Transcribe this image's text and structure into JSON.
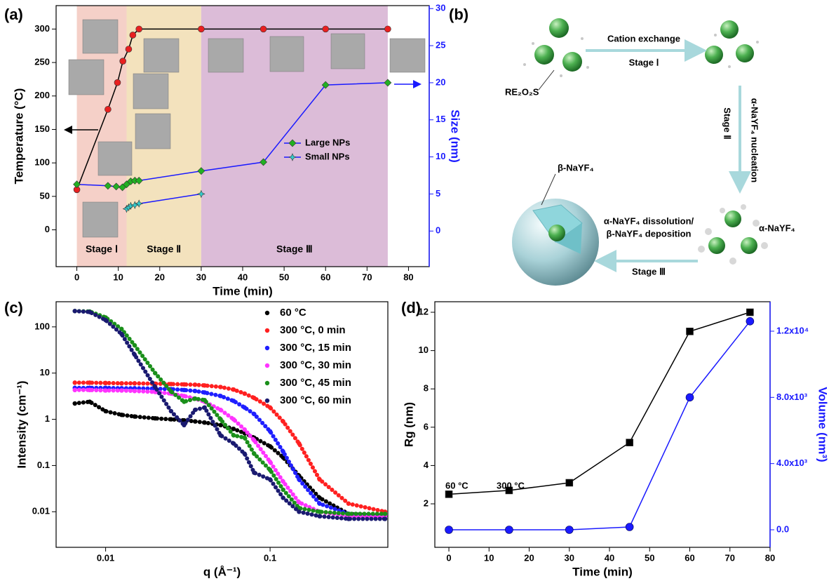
{
  "panel_labels": [
    "(a)",
    "(b)",
    "(c)",
    "(d)"
  ],
  "diagram": {
    "cation_exchange": "Cation exchange",
    "stage_1": "Stage Ⅰ",
    "precursor": "RE₂O₂S",
    "nucleation": "α-NaYF₄ nucleation",
    "stage_2": "Stage Ⅱ",
    "beta": "β-NaYF₄",
    "alpha": "α-NaYF₄",
    "dissolution": "α-NaYF₄ dissolution/",
    "deposition": "β-NaYF₄ deposition",
    "stage_3": "Stage Ⅲ"
  },
  "chart_data": [
    {
      "type": "line",
      "x_label": "Time (min)",
      "y_label": "Temperature (°C)",
      "y2_label": "Size (nm)",
      "y2_color": "#1a1aff",
      "xlim": [
        -5,
        85
      ],
      "xticks": [
        0,
        10,
        20,
        30,
        40,
        50,
        60,
        70,
        80
      ],
      "ylim": [
        -55,
        335
      ],
      "yticks": [
        0,
        50,
        100,
        150,
        200,
        250,
        300
      ],
      "y2lim": [
        -4.8,
        30.4
      ],
      "y2ticks": [
        0,
        5,
        10,
        15,
        20,
        25,
        30
      ],
      "legend": "center right",
      "stages": [
        {
          "label": "Stage Ⅰ",
          "start": 0,
          "end": 12,
          "color": "#f5d0c8"
        },
        {
          "label": "Stage Ⅱ",
          "start": 12,
          "end": 30,
          "color": "#f3e2bd"
        },
        {
          "label": "Stage Ⅲ",
          "start": 30,
          "end": 75,
          "color": "#dcbcd8"
        }
      ],
      "series": [
        {
          "color": "#e82020",
          "line_color": "#000000",
          "marker": "circle",
          "x": [
            0,
            7.5,
            9.8,
            11.1,
            12.5,
            13.5,
            15,
            30,
            45,
            60,
            75
          ],
          "values": [
            60,
            180,
            220,
            252,
            270,
            291,
            300,
            300,
            300,
            300,
            300
          ]
        },
        {
          "name": "Large NPs",
          "color": "#22b022",
          "line_color": "#1a1aff",
          "marker": "diamond",
          "axis": "y2",
          "x": [
            0,
            7.5,
            9.5,
            11,
            12,
            13,
            14,
            15,
            30,
            45,
            60,
            75
          ],
          "values": [
            6.3,
            6.1,
            6.0,
            5.9,
            6.3,
            6.7,
            6.8,
            6.8,
            8.1,
            9.3,
            19.7,
            20.0
          ]
        },
        {
          "name": "Small NPs",
          "color": "#33cccc",
          "line_color": "#1a1aff",
          "marker": "star",
          "axis": "y2",
          "x": [
            12,
            12.5,
            13,
            14,
            15,
            30
          ],
          "values": [
            3.0,
            3.2,
            3.4,
            3.5,
            3.7,
            5.0
          ]
        }
      ]
    },
    {
      "type": "scatter",
      "x_label": "q (Å⁻¹)",
      "y_label": "Intensity (cm⁻¹)",
      "xscale": "log",
      "yscale": "log",
      "xlim": [
        0.005,
        0.52
      ],
      "xticks": [
        0.01,
        0.1
      ],
      "ylim": [
        0.0017,
        350
      ],
      "yticks": [
        0.01,
        0.1,
        1,
        10,
        100
      ],
      "legend": "upper right",
      "x": [
        0.0065,
        0.008,
        0.01,
        0.0125,
        0.015,
        0.02,
        0.025,
        0.03,
        0.035,
        0.04,
        0.05,
        0.06,
        0.07,
        0.08,
        0.1,
        0.12,
        0.15,
        0.2,
        0.3,
        0.5
      ],
      "series": [
        {
          "name": "60 °C",
          "color": "#000000",
          "values": [
            2.2,
            2.4,
            1.5,
            1.25,
            1.15,
            1.05,
            1.0,
            0.95,
            0.9,
            0.85,
            0.75,
            0.62,
            0.5,
            0.4,
            0.26,
            0.15,
            0.06,
            0.02,
            0.009,
            0.008
          ]
        },
        {
          "name": "300 °C, 0 min",
          "color": "#ff2020",
          "values": [
            6.2,
            6.2,
            6.1,
            6.0,
            6.0,
            5.9,
            5.8,
            5.7,
            5.6,
            5.4,
            5.0,
            4.4,
            3.6,
            2.9,
            1.8,
            0.9,
            0.3,
            0.05,
            0.015,
            0.01
          ]
        },
        {
          "name": "300 °C, 15 min",
          "color": "#1f1fff",
          "values": [
            4.8,
            4.8,
            4.8,
            4.7,
            4.7,
            4.6,
            4.5,
            4.3,
            4.1,
            3.8,
            3.2,
            2.5,
            1.8,
            1.3,
            0.55,
            0.2,
            0.05,
            0.015,
            0.009,
            0.008
          ]
        },
        {
          "name": "300 °C, 30 min",
          "color": "#ff33ff",
          "values": [
            4.3,
            4.3,
            4.2,
            4.2,
            4.1,
            3.9,
            3.6,
            3.2,
            2.8,
            2.4,
            1.6,
            1.0,
            0.6,
            0.35,
            0.12,
            0.045,
            0.016,
            0.01,
            0.008,
            0.008
          ]
        },
        {
          "name": "300 °C, 45 min",
          "color": "#1a8f1a",
          "values": [
            220,
            215,
            160,
            90,
            40,
            10,
            4,
            2.4,
            2.8,
            2.6,
            1.0,
            0.45,
            0.4,
            0.18,
            0.08,
            0.03,
            0.012,
            0.01,
            0.009,
            0.009
          ]
        },
        {
          "name": "300 °C, 60 min",
          "color": "#1a1a70",
          "values": [
            220,
            210,
            140,
            70,
            25,
            5,
            1.5,
            0.75,
            1.6,
            1.8,
            0.45,
            0.3,
            0.18,
            0.07,
            0.05,
            0.02,
            0.01,
            0.008,
            0.007,
            0.007
          ]
        }
      ]
    },
    {
      "type": "line",
      "x_label": "Time (min)",
      "y_label": "Rg (nm)",
      "y2_label": "Volume (nm³)",
      "y2_color": "#1a1aff",
      "xlim": [
        -3.5,
        80
      ],
      "xticks": [
        0,
        10,
        20,
        30,
        40,
        50,
        60,
        70,
        80
      ],
      "ylim": [
        -0.27,
        12.55
      ],
      "yticks": [
        2,
        4,
        6,
        8,
        10,
        12
      ],
      "y2lim": [
        -1060,
        13780
      ],
      "y2ticks": [
        {
          "value": 0,
          "label": "0.0"
        },
        {
          "value": 4000,
          "label": "4.0x10³"
        },
        {
          "value": 8000,
          "label": "8.0x10³"
        },
        {
          "value": 12000,
          "label": "1.2x10⁴"
        }
      ],
      "annotations": [
        "60 °C",
        "300 °C"
      ],
      "series": [
        {
          "color": "#000000",
          "line_color": "#000000",
          "marker": "square",
          "x": [
            0,
            15,
            30,
            45,
            60,
            75
          ],
          "values": [
            2.5,
            2.7,
            3.1,
            5.2,
            11,
            12
          ]
        },
        {
          "color": "#1a1aff",
          "line_color": "#1a1aff",
          "marker": "ball",
          "axis": "y2",
          "x": [
            0,
            15,
            30,
            45,
            60,
            75
          ],
          "values": [
            0,
            0,
            0,
            170,
            8000,
            12600
          ]
        }
      ]
    }
  ]
}
